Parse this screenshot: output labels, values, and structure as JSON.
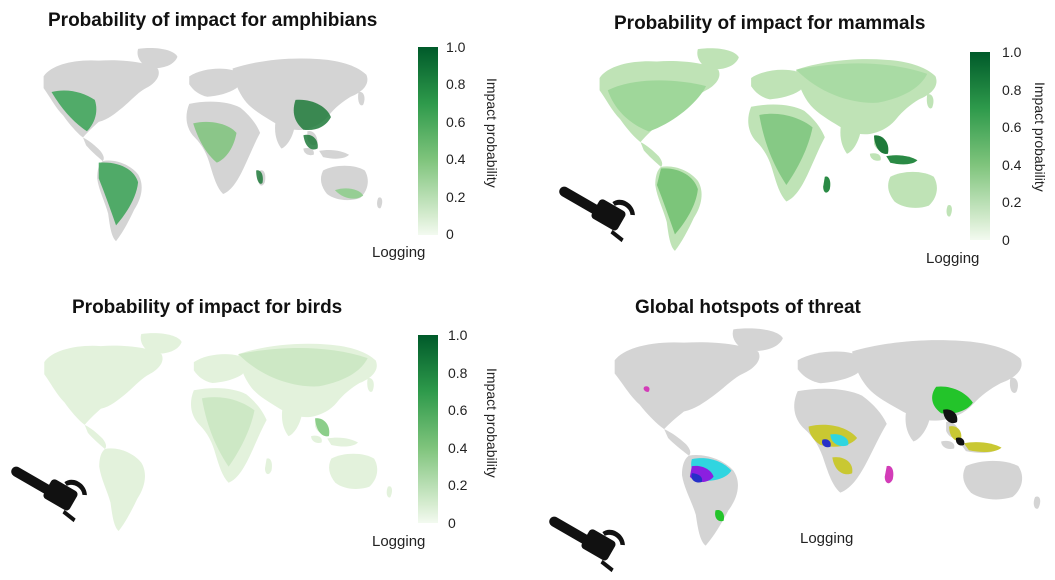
{
  "colors": {
    "land": "#d4d4d4",
    "green_light": "#e7f4e1",
    "green_mid": "#8cce8a",
    "green_dark": "#1f7a3a",
    "green_darkest": "#005a2a",
    "hotspot_cyan": "#30d5e0",
    "hotspot_purple": "#8b1fe0",
    "hotspot_blue": "#2530c8",
    "hotspot_yellow": "#c9c832",
    "hotspot_green": "#23c42a",
    "hotspot_magenta": "#d33cb8",
    "hotspot_dark": "#111111"
  },
  "panels": [
    {
      "title": "Probability of impact for amphibians",
      "legend_title": "Impact probability",
      "ticks": [
        "1.0",
        "0.8",
        "0.6",
        "0.4",
        "0.2",
        "0"
      ],
      "label": "Logging"
    },
    {
      "title": "Probability of impact for mammals",
      "legend_title": "Impact probability",
      "ticks": [
        "1.0",
        "0.8",
        "0.6",
        "0.4",
        "0.2",
        "0"
      ],
      "label": "Logging"
    },
    {
      "title": "Probability of impact for birds",
      "legend_title": "Impact probability",
      "ticks": [
        "1.0",
        "0.8",
        "0.6",
        "0.4",
        "0.2",
        "0"
      ],
      "label": "Logging"
    },
    {
      "title": "Global hotspots of threat",
      "label": "Logging"
    }
  ],
  "icons": [
    "world-map",
    "chainsaw-icon"
  ]
}
